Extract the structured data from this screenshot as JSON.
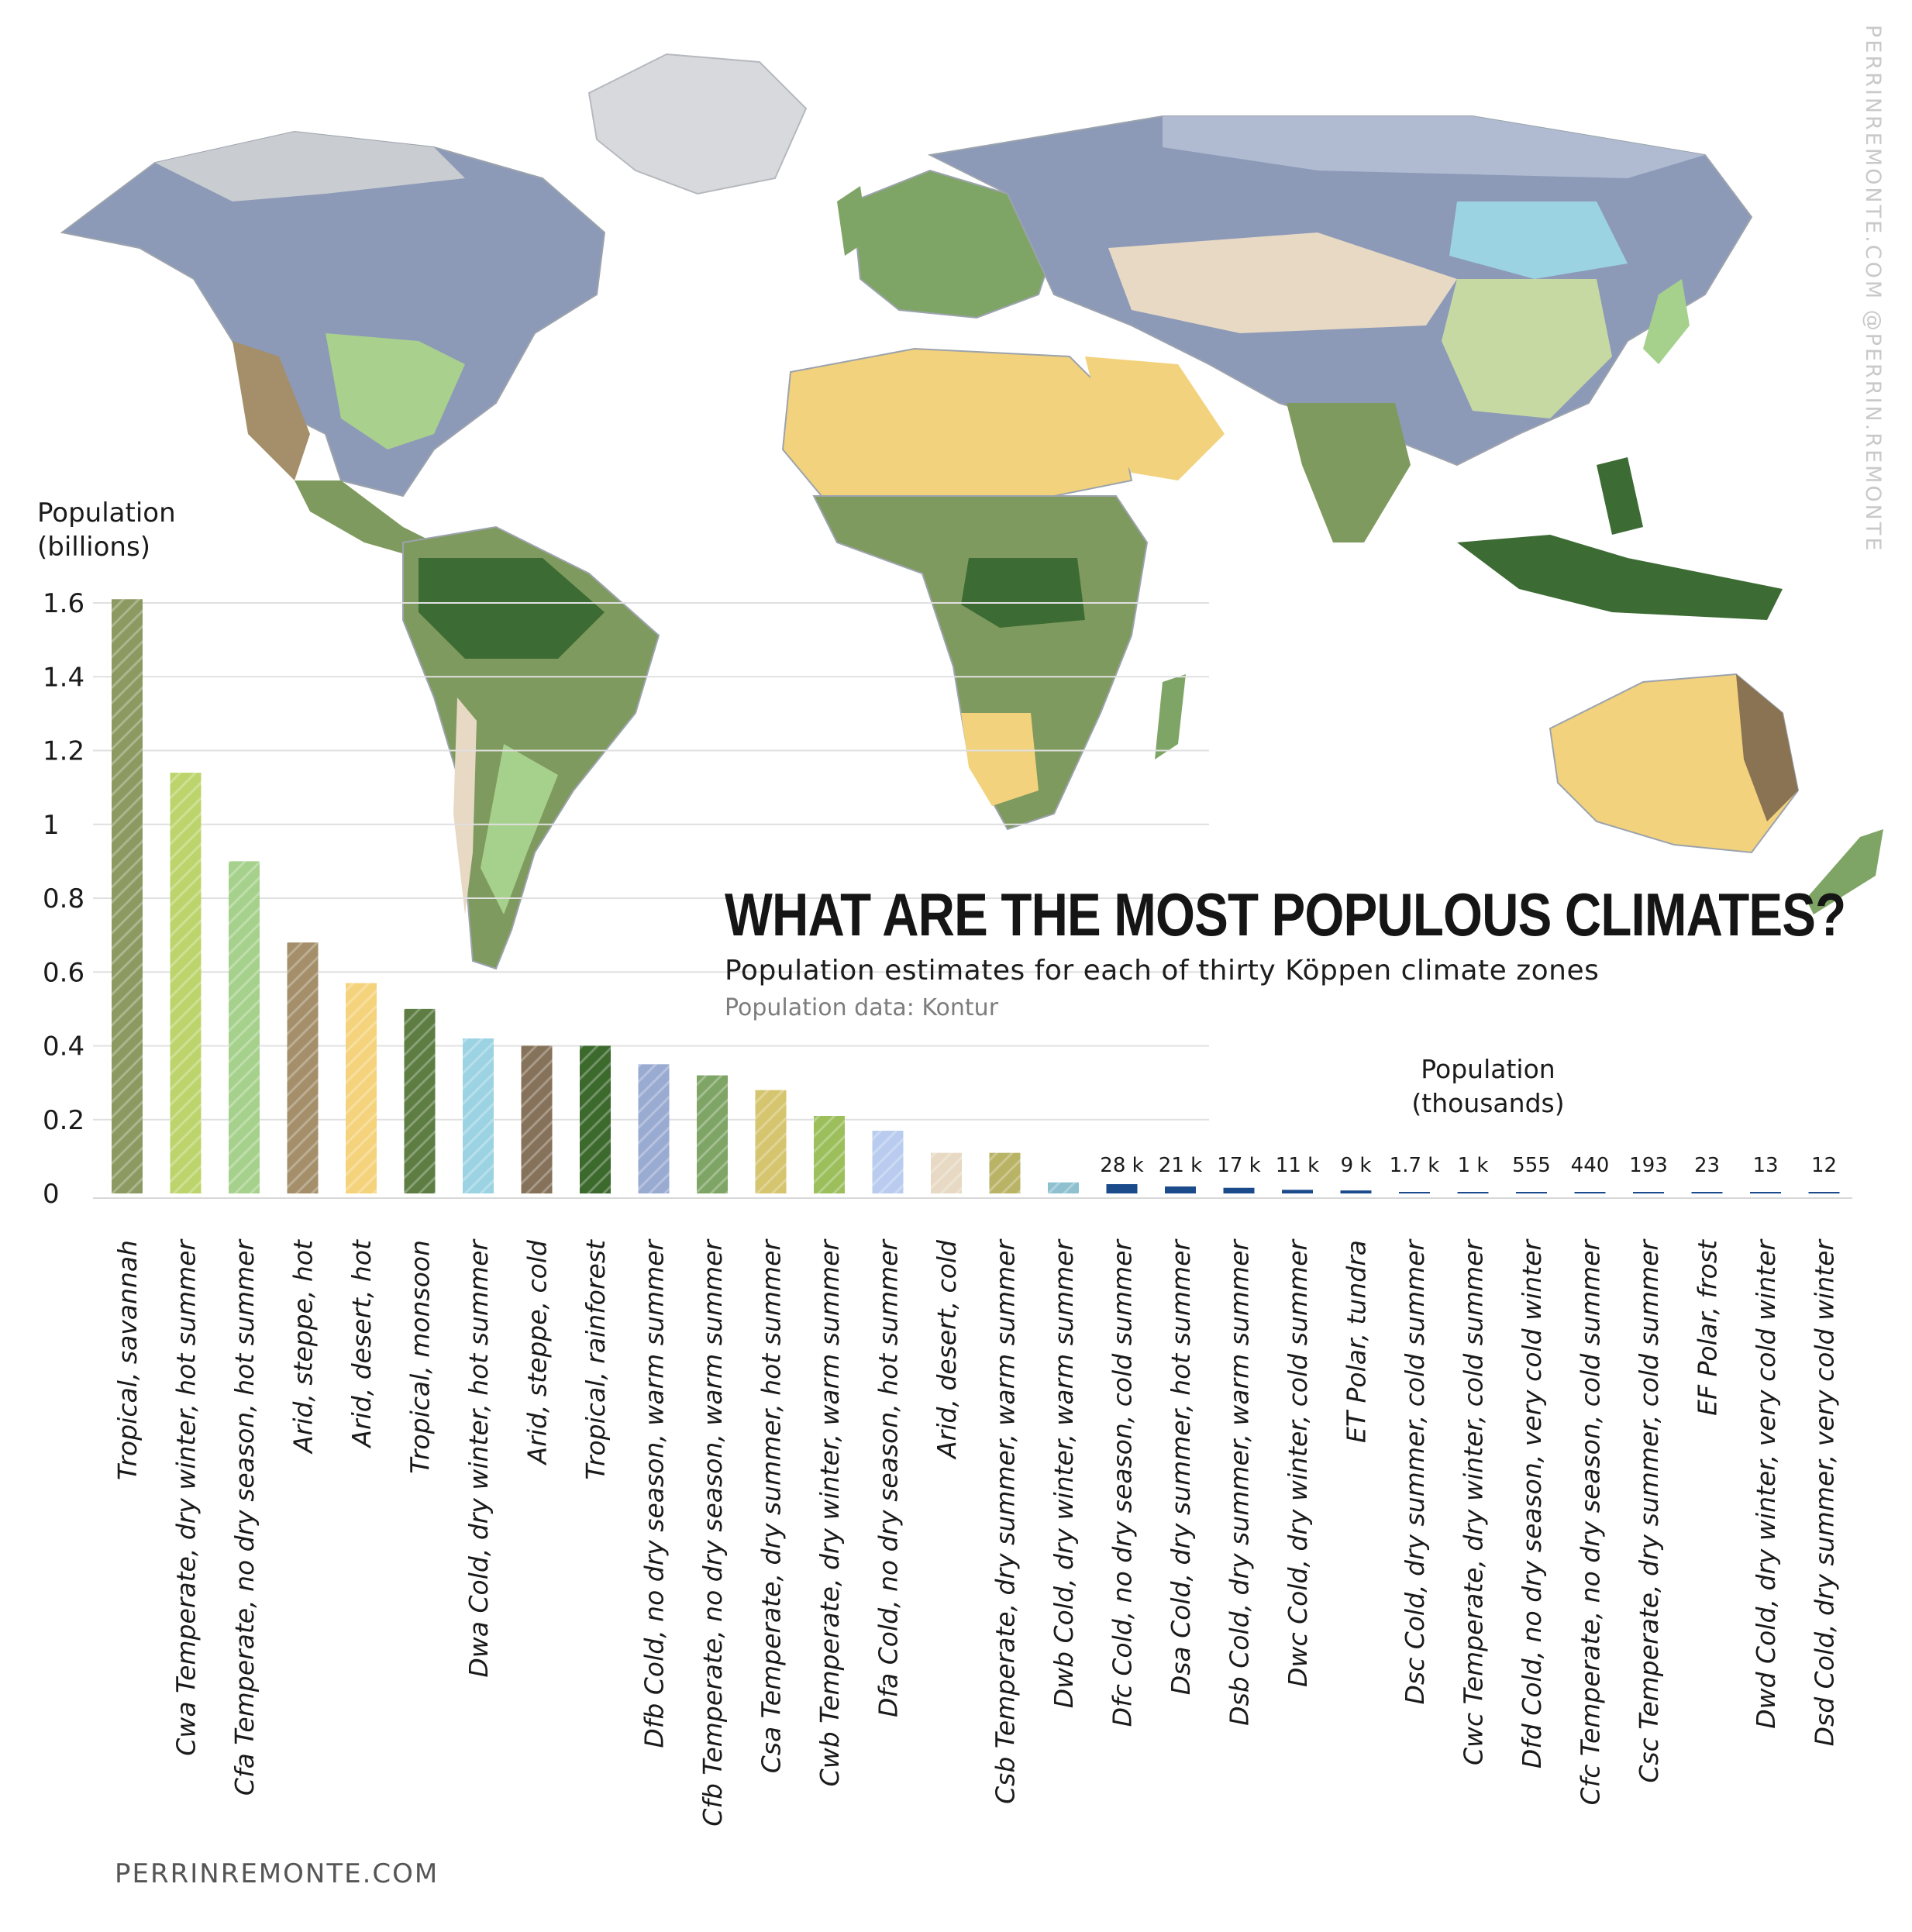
{
  "header": {
    "title": "WHAT ARE THE MOST POPULOUS CLIMATES?",
    "subtitle": "Population estimates for each of thirty Köppen climate zones",
    "source": "Population data: Kontur"
  },
  "axes": {
    "left_title_line1": "Population",
    "left_title_line2": "(billions)",
    "right_title_line1": "Population",
    "right_title_line2": "(thousands)"
  },
  "footer": {
    "site": "PERRINREMONTE.COM"
  },
  "side_credit": "PERRINREMONTE.COM   @PERRIN.REMONTE",
  "colors": {
    "ocean": "#ffffff",
    "tundra": "#c9ccd0",
    "boreal": "#8c9ab8",
    "desert": "#f2d27c",
    "savannah": "#7f9a5e",
    "rainforest": "#3d6b34",
    "steppe": "#8a7352"
  },
  "chart_data": {
    "type": "bar",
    "title": "",
    "ylabel": "Population (billions)",
    "ylim": [
      0,
      1.6
    ],
    "yticks": [
      0,
      0.2,
      0.4,
      0.6,
      0.8,
      1,
      1.2,
      1.4,
      1.6
    ],
    "ytick_labels": [
      "0",
      "0.2",
      "0.4",
      "0.6",
      "0.8",
      "1",
      "1.2",
      "1.4",
      "1.6"
    ],
    "grid": true,
    "categories": [
      {
        "label": "Tropical, savannah",
        "value_billions": 1.61,
        "color": "#8c9a62",
        "hatch": true
      },
      {
        "label": "Cwa Temperate, dry winter, hot summer",
        "value_billions": 1.14,
        "color": "#bdd46c",
        "hatch": true
      },
      {
        "label": "Cfa Temperate, no dry season, hot summer",
        "value_billions": 0.9,
        "color": "#a6d18c",
        "hatch": true
      },
      {
        "label": "Arid, steppe, hot",
        "value_billions": 0.68,
        "color": "#a48f6a",
        "hatch": true
      },
      {
        "label": "Arid, desert, hot",
        "value_billions": 0.57,
        "color": "#f5d37c",
        "hatch": true
      },
      {
        "label": "Tropical, monsoon",
        "value_billions": 0.5,
        "color": "#5d7d43",
        "hatch": true
      },
      {
        "label": "Dwa Cold, dry winter, hot summer",
        "value_billions": 0.42,
        "color": "#9cd3e3",
        "hatch": true
      },
      {
        "label": "Arid, steppe, cold",
        "value_billions": 0.4,
        "color": "#86725a",
        "hatch": true
      },
      {
        "label": "Tropical, rainforest",
        "value_billions": 0.4,
        "color": "#3c6a2d",
        "hatch": true
      },
      {
        "label": "Dfb Cold, no dry season, warm summer",
        "value_billions": 0.35,
        "color": "#9aabd2",
        "hatch": true
      },
      {
        "label": "Cfb Temperate, no dry season, warm summer",
        "value_billions": 0.32,
        "color": "#7fa566",
        "hatch": true
      },
      {
        "label": "Csa Temperate, dry summer, hot summer",
        "value_billions": 0.28,
        "color": "#d5c56e",
        "hatch": true
      },
      {
        "label": "Cwb Temperate, dry winter, warm summer",
        "value_billions": 0.21,
        "color": "#9cbf5c",
        "hatch": true
      },
      {
        "label": "Dfa Cold, no dry season, hot summer",
        "value_billions": 0.17,
        "color": "#b9ccef",
        "hatch": true
      },
      {
        "label": "Arid, desert, cold",
        "value_billions": 0.11,
        "color": "#e7d9c4",
        "hatch": true
      },
      {
        "label": "Csb Temperate, dry summer, warm summer",
        "value_billions": 0.11,
        "color": "#b8b365",
        "hatch": true
      },
      {
        "label": "Dwb Cold, dry winter, warm summer",
        "value_billions": 0.03,
        "color": "#8fc0cf",
        "hatch": true
      }
    ],
    "small_series": {
      "ylabel": "Population (thousands)",
      "categories": [
        {
          "label": "Dfc Cold, no dry season, cold summer",
          "value_label": "28 k",
          "value_thousands": 28000
        },
        {
          "label": "Dsa Cold, dry summer, hot summer",
          "value_label": "21 k",
          "value_thousands": 21000
        },
        {
          "label": "Dsb Cold, dry summer, warm summer",
          "value_label": "17 k",
          "value_thousands": 17000
        },
        {
          "label": "Dwc Cold, dry winter, cold summer",
          "value_label": "11 k",
          "value_thousands": 11000
        },
        {
          "label": "ET Polar, tundra",
          "value_label": "9 k",
          "value_thousands": 9000
        },
        {
          "label": "Dsc Cold, dry summer, cold summer",
          "value_label": "1.7 k",
          "value_thousands": 1700
        },
        {
          "label": "Cwc Temperate, dry winter, cold summer",
          "value_label": "1 k",
          "value_thousands": 1000
        },
        {
          "label": "Dfd Cold, no dry season, very cold winter",
          "value_label": "555",
          "value_thousands": 555
        },
        {
          "label": "Cfc Temperate, no dry season, cold summer",
          "value_label": "440",
          "value_thousands": 440
        },
        {
          "label": "Csc Temperate, dry summer, cold summer",
          "value_label": "193",
          "value_thousands": 193
        },
        {
          "label": "EF Polar, frost",
          "value_label": "23",
          "value_thousands": 23
        },
        {
          "label": "Dwd Cold, dry winter, very cold winter",
          "value_label": "13",
          "value_thousands": 13
        },
        {
          "label": "Dsd Cold, dry summer, very cold winter",
          "value_label": "12",
          "value_thousands": 12
        }
      ],
      "bar_color": "#1c4b8c"
    }
  }
}
